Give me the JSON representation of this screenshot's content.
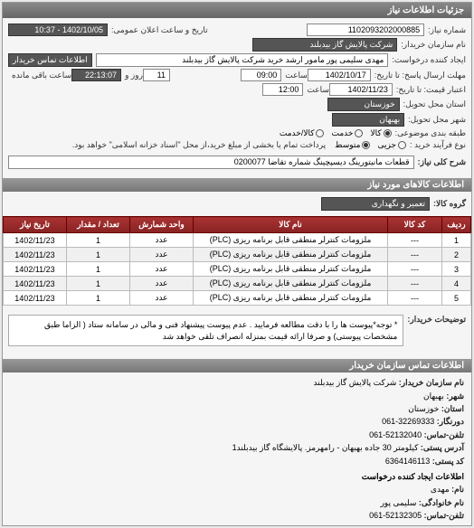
{
  "header": {
    "title": "جزئیات اطلاعات نیاز"
  },
  "fields": {
    "reqNo_label": "شماره نیاز:",
    "reqNo": "1102093202000885",
    "pubDate_label": "تاریخ و ساعت اعلان عمومی:",
    "pubDate": "1402/10/05 - 10:37",
    "buyerName_label": "نام سازمان خریدار:",
    "buyerName": "شرکت پالایش گاز بیدبلند",
    "requester_label": "ایجاد کننده درخواست:",
    "requester": "مهدی سلیمی پور مامور ارشد خرید شرکت پالایش گاز بیدبلند",
    "contactBtn": "اطلاعات تماس خریدار",
    "respDeadline_label": "مهلت ارسال پاسخ: تا تاریخ:",
    "respDate": "1402/10/17",
    "time_label": "ساعت",
    "respTime": "09:00",
    "daysRemain": "11",
    "daysRemain_suffix": "روز و",
    "hoursRemain": "22:13:07",
    "hoursRemain_suffix": "ساعت باقی مانده",
    "validity_label": "اعتبار قیمت: تا تاریخ:",
    "validDate": "1402/11/23",
    "validTime": "12:00",
    "deliveryProv_label": "استان محل تحویل:",
    "deliveryProv": "خوزستان",
    "deliveryCity_label": "شهر محل تحویل:",
    "deliveryCity": "بهبهان",
    "subjectGroup_label": "طبقه بندی موضوعی:",
    "radio_goods": "کالا",
    "radio_service": "خدمت",
    "radio_goodsService": "کالا/خدمت",
    "purchaseType_label": "نوع فرآیند خرید :",
    "radio_minor": "جزیی",
    "radio_medium": "متوسط",
    "purchaseNote": "پرداخت تمام یا بخشی از مبلغ خرید،از محل \"اسناد خزانه اسلامی\" خواهد بود.",
    "generalDesc_label": "شرح کلی نیاز:",
    "generalDesc": "قطعات مانیتورینگ دیسپچینگ شماره تقاضا 0200077"
  },
  "itemsHeader": "اطلاعات کالاهای مورد نیاز",
  "group_label": "گروه کالا:",
  "group_value": "تعمیر و نگهداری",
  "table": {
    "cols": [
      "ردیف",
      "کد کالا",
      "نام کالا",
      "واحد شمارش",
      "تعداد / مقدار",
      "تاریخ نیاز"
    ],
    "rows": [
      [
        "1",
        "---",
        "ملزومات کنترلر منطقی قابل برنامه ریزی (PLC)",
        "عدد",
        "1",
        "1402/11/23"
      ],
      [
        "2",
        "---",
        "ملزومات کنترلر منطقی قابل برنامه ریزی (PLC)",
        "عدد",
        "1",
        "1402/11/23"
      ],
      [
        "3",
        "---",
        "ملزومات کنترلر منطقی قابل برنامه ریزی (PLC)",
        "عدد",
        "1",
        "1402/11/23"
      ],
      [
        "4",
        "---",
        "ملزومات کنترلر منطقی قابل برنامه ریزی (PLC)",
        "عدد",
        "1",
        "1402/11/23"
      ],
      [
        "5",
        "---",
        "ملزومات کنترلر منطقی قابل برنامه ریزی (PLC)",
        "عدد",
        "1",
        "1402/11/23"
      ]
    ],
    "colWidths": [
      "32px",
      "60px",
      "auto",
      "70px",
      "70px",
      "70px"
    ]
  },
  "note_label": "توضیحات خریدار:",
  "note_text": "* توجه*پیوست ها را با دقت مطالعه فرمایید . عدم پیوست پیشنهاد فنی و مالی در سامانه ستاد ( الزاما طبق مشخصات پیوستی) و صرفا ارائه قیمت بمنزله انصراف تلقی خواهد شد",
  "contactHeader": "اطلاعات تماس سازمان خریدار",
  "contact": {
    "org_label": "نام سازمان خریدار:",
    "org": "شرکت پالایش گاز بیدبلند",
    "city_label": "شهر:",
    "city": "بهبهان",
    "prov_label": "استان:",
    "prov": "خوزستان",
    "dial_label": "دورنگار:",
    "dial": "32269333-061",
    "phone_label": "تلفن-تماس:",
    "phone": "52132040-061",
    "addr_label": "آدرس پستی:",
    "addr": "کیلومتر 30 جاده بهبهان - رامهرمز. پالایشگاه گاز بیدبلند1",
    "post_label": "کد پستی:",
    "post": "6364146113",
    "creatorHeader": "اطلاعات ایجاد کننده درخواست",
    "name_label": "نام:",
    "name": "مهدی",
    "fam_label": "نام خانوادگی:",
    "fam": "سلیمی پور",
    "tel_label": "تلفن-تماس:",
    "tel": "52132305-061"
  }
}
